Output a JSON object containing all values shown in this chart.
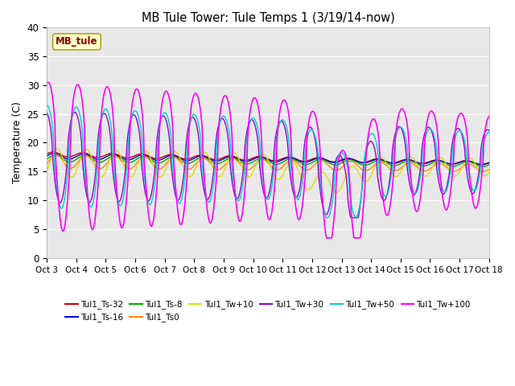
{
  "title": "MB Tule Tower: Tule Temps 1 (3/19/14-now)",
  "ylabel": "Temperature (C)",
  "xlim": [
    0,
    15
  ],
  "ylim": [
    0,
    40
  ],
  "yticks": [
    0,
    5,
    10,
    15,
    20,
    25,
    30,
    35,
    40
  ],
  "xtick_labels": [
    "Oct 3",
    "Oct 4",
    "Oct 5",
    "Oct 6",
    "Oct 7",
    "Oct 8",
    "Oct 9",
    "Oct 10",
    "Oct 11",
    "Oct 12",
    "Oct 13",
    "Oct 14",
    "Oct 15",
    "Oct 16",
    "Oct 17",
    "Oct 18"
  ],
  "bg_color": "#e8e8e8",
  "label_box_text": "MB_tule",
  "label_box_color": "#ffffcc",
  "label_box_border": "#999900",
  "label_text_color": "#880000",
  "series": [
    {
      "name": "Tul1_Ts-32",
      "color": "#cc0000",
      "lw": 1.0
    },
    {
      "name": "Tul1_Ts-16",
      "color": "#0000cc",
      "lw": 1.0
    },
    {
      "name": "Tul1_Ts-8",
      "color": "#00aa00",
      "lw": 1.0
    },
    {
      "name": "Tul1_Ts0",
      "color": "#ff8800",
      "lw": 1.0
    },
    {
      "name": "Tul1_Tw+10",
      "color": "#dddd00",
      "lw": 1.0
    },
    {
      "name": "Tul1_Tw+30",
      "color": "#9900cc",
      "lw": 1.0
    },
    {
      "name": "Tul1_Tw+50",
      "color": "#00cccc",
      "lw": 1.0
    },
    {
      "name": "Tul1_Tw+100",
      "color": "#ff00ff",
      "lw": 1.2
    }
  ]
}
